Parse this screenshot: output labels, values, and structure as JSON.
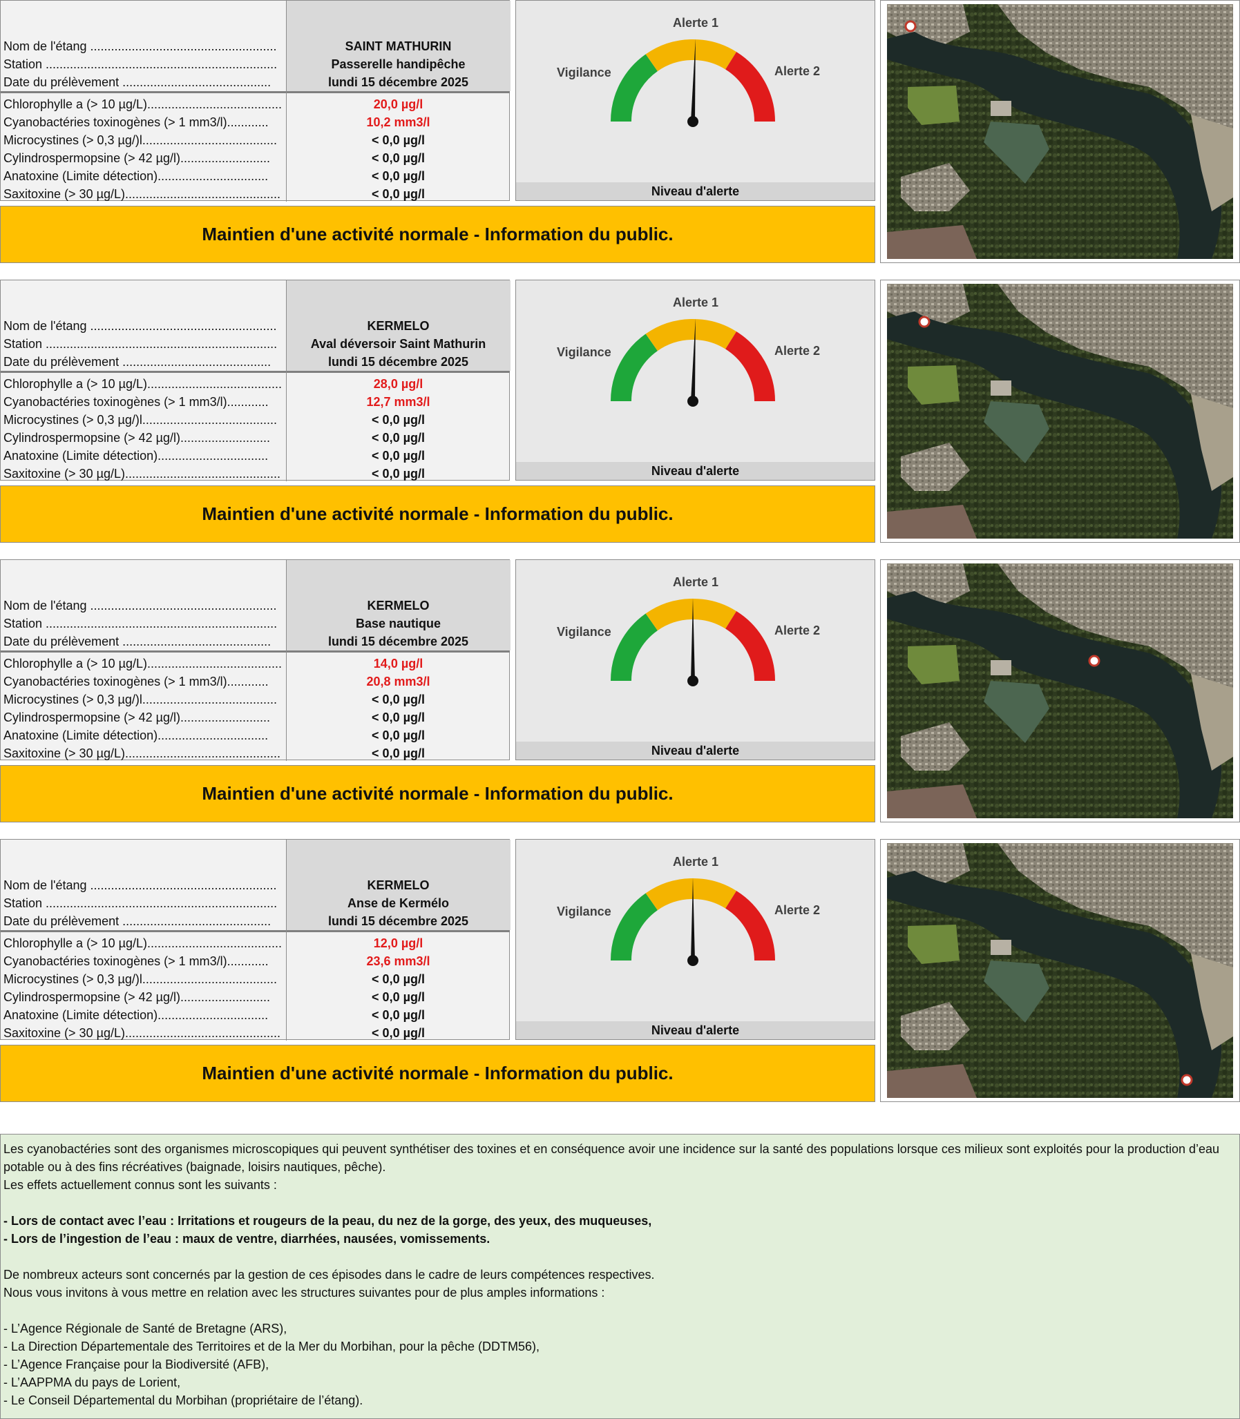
{
  "labels": {
    "pond_name": "Nom de l'étang ......................................................",
    "station": "Station ...................................................................",
    "sample_date": "Date du prélèvement ...........................................",
    "params": [
      "Chlorophylle a (> 10 µg/L).......................................",
      "Cyanobactéries toxinogènes (> 1 mm3/l)............",
      "Microcystines (> 0,3 µg/)l.......................................",
      "Cylindrospermopsine (> 42 µg/l)..........................",
      "Anatoxine (Limite détection)................................",
      "Saxitoxine (> 30 µg/L)............................................."
    ],
    "gauge_alert1": "Alerte 1",
    "gauge_vigilance": "Vigilance",
    "gauge_alert2": "Alerte 2",
    "gauge_footer": "Niveau d'alerte"
  },
  "colors": {
    "green": "#1ea73a",
    "yellow": "#f4b400",
    "red": "#e01b1b",
    "banner": "#ffc000",
    "info_bg": "#e2efda"
  },
  "stations": [
    {
      "pond": "SAINT MATHURIN",
      "station": "Passerelle handipêche",
      "date": "lundi 15 décembre 2025",
      "values": [
        "20,0 µg/l",
        "10,2 mm3/l",
        "< 0,0 µg/l",
        "< 0,0 µg/l",
        "< 0,0 µg/l",
        "< 0,0 µg/l"
      ],
      "exceeded": [
        true,
        true,
        false,
        false,
        false,
        false
      ],
      "gauge_level_fraction": 0.51,
      "banner": "Maintien d'une activité normale - Information du public."
    },
    {
      "pond": "KERMELO",
      "station": "Aval déversoir Saint Mathurin",
      "date": "lundi 15 décembre 2025",
      "values": [
        "28,0 µg/l",
        "12,7 mm3/l",
        "< 0,0 µg/l",
        "< 0,0 µg/l",
        "< 0,0 µg/l",
        "< 0,0 µg/l"
      ],
      "exceeded": [
        true,
        true,
        false,
        false,
        false,
        false
      ],
      "gauge_level_fraction": 0.51,
      "banner": "Maintien d'une activité normale - Information du public."
    },
    {
      "pond": "KERMELO",
      "station": "Base nautique",
      "date": "lundi 15 décembre 2025",
      "values": [
        "14,0 µg/l",
        "20,8 mm3/l",
        "< 0,0 µg/l",
        "< 0,0 µg/l",
        "< 0,0 µg/l",
        "< 0,0 µg/l"
      ],
      "exceeded": [
        true,
        true,
        false,
        false,
        false,
        false
      ],
      "gauge_level_fraction": 0.5,
      "banner": "Maintien d'une activité normale - Information du public."
    },
    {
      "pond": "KERMELO",
      "station": "Anse de Kermélo",
      "date": "lundi 15 décembre 2025",
      "values": [
        "12,0 µg/l",
        "23,6 mm3/l",
        "< 0,0 µg/l",
        "< 0,0 µg/l",
        "< 0,0 µg/l",
        "< 0,0 µg/l"
      ],
      "exceeded": [
        true,
        true,
        false,
        false,
        false,
        false
      ],
      "gauge_level_fraction": 0.5,
      "banner": "Maintien d'une activité normale - Information du public."
    }
  ],
  "info": {
    "intro": "Les cyanobactéries sont des organismes microscopiques qui peuvent synthétiser des toxines et en conséquence avoir une incidence sur la santé des populations lorsque ces milieux sont exploités pour la production d’eau potable ou à des fins récréatives (baignade, loisirs nautiques, pêche).",
    "effects_title": "Les effets actuellement connus sont les suivants :",
    "effect_contact": "- Lors de contact avec l’eau : Irritations et rougeurs de la peau, du nez de la gorge, des yeux, des muqueuses,",
    "effect_ingestion": "- Lors de l’ingestion de l’eau : maux de ventre, diarrhées, nausées, vomissements.",
    "actors": "De nombreux acteurs sont concernés par la gestion de ces épisodes dans le cadre de leurs compétences respectives.",
    "invite": "Nous vous invitons à vous mettre en relation avec les structures suivantes pour de plus amples informations :",
    "orgs": [
      "- L’Agence Régionale de Santé de Bretagne (ARS),",
      "- La Direction Départementale des Territoires et de la Mer du Morbihan,  pour la pêche (DDTM56),",
      "- L’Agence Française pour la Biodiversité (AFB),",
      "- L’AAPPMA du pays de Lorient,",
      "- Le Conseil Départemental du Morbihan (propriétaire de l’étang)."
    ]
  }
}
